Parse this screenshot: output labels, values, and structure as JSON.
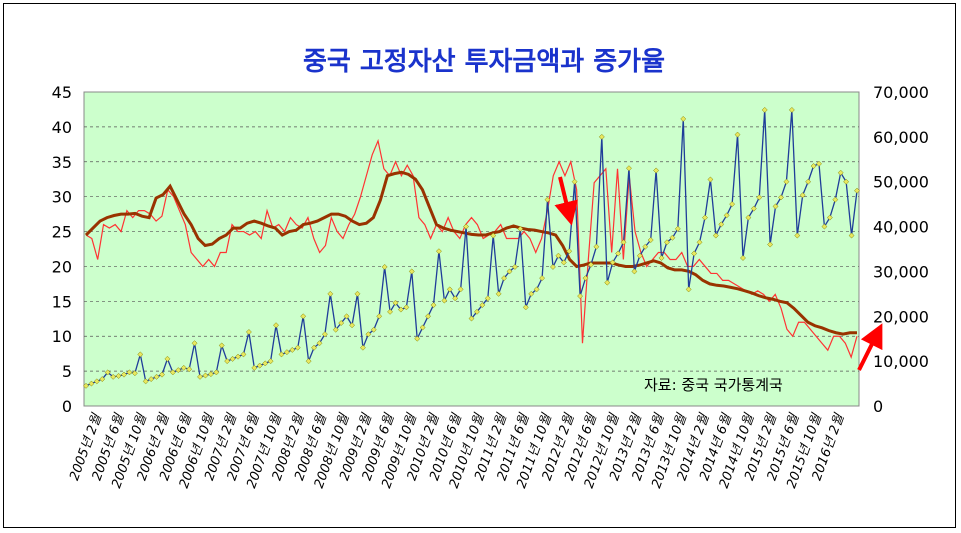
{
  "chart_data": {
    "type": "line",
    "title": "중국 고정자산 투자금액과 증가율",
    "source_note": "자료: 중국 국가통계국",
    "y_left_ticks": [
      "0",
      "5",
      "10",
      "15",
      "20",
      "25",
      "30",
      "35",
      "40",
      "45"
    ],
    "y_right_ticks": [
      "0",
      "10,000",
      "20,000",
      "30,000",
      "40,000",
      "50,000",
      "60,000",
      "70,000"
    ],
    "ylim_left": [
      0,
      45
    ],
    "ylim_right": [
      0,
      70000
    ],
    "x_tick_labels": [
      "2005년 2월",
      "2005년 6월",
      "2005년 10월",
      "2006년 2월",
      "2006년 6월",
      "2006년 10월",
      "2007년 2월",
      "2007년 6월",
      "2007년 10월",
      "2008년 2월",
      "2008년 6월",
      "2008년 10월",
      "2009년 2월",
      "2009년 6월",
      "2009년 10월",
      "2010년 2월",
      "2010년 6월",
      "2010년 10월",
      "2011년 2월",
      "2011년 6월",
      "2011년 10월",
      "2012년 2월",
      "2012년 6월",
      "2012년 10월",
      "2013년 2월",
      "2013년 6월",
      "2013년 10월",
      "2014년 2월",
      "2014년 6월",
      "2014년 10월",
      "2015년 2월",
      "2015년 6월",
      "2015년 10월",
      "2016년 2월"
    ],
    "colors": {
      "plot_bg": "#ccffcc",
      "growth_rate": "#ff3333",
      "growth_trend": "#993300",
      "amount_line": "#1f3d99",
      "amount_marker": "#e8e860",
      "title": "#1a33cc",
      "arrow": "#ff0000"
    },
    "series": [
      {
        "axis": "left",
        "style": "thin-red",
        "values": [
          24.5,
          24,
          21,
          26,
          25.5,
          26,
          25,
          28,
          27,
          28,
          28,
          27.5,
          26.5,
          27.2,
          31,
          30,
          28,
          26,
          22,
          21,
          20,
          21,
          20,
          22,
          22,
          26,
          25,
          25,
          24.5,
          25,
          24,
          28,
          25.5,
          26,
          25,
          27,
          26,
          25.5,
          27,
          24,
          22,
          23,
          27,
          25,
          24,
          26,
          27.5,
          30,
          33,
          36,
          38,
          34,
          33,
          35,
          33,
          34.5,
          33,
          27,
          26,
          24,
          26,
          25,
          27,
          25,
          24,
          26,
          27,
          26,
          24,
          24.5,
          25,
          26,
          24,
          24,
          24,
          25,
          24,
          22,
          24,
          28,
          33,
          35,
          33,
          35,
          31,
          9,
          21,
          32,
          33,
          34,
          22,
          34,
          21,
          33,
          25,
          22,
          20,
          21,
          22,
          22,
          21,
          21,
          22,
          20,
          20,
          21,
          20,
          19,
          19,
          18,
          18,
          17.5,
          17,
          16.5,
          16,
          16.5,
          16,
          15,
          16,
          14,
          11,
          10,
          12,
          12,
          11,
          10,
          9,
          8,
          10,
          10,
          9,
          7,
          10
        ],
        "x_start": 0.0,
        "x_step": 0.0096
      },
      {
        "axis": "left",
        "style": "thick-trend",
        "values": [
          24.5,
          25.5,
          26.5,
          27,
          27.3,
          27.5,
          27.5,
          27.6,
          27.2,
          27,
          29.8,
          30.3,
          31.5,
          29.5,
          27.5,
          26,
          24,
          23,
          23.2,
          24,
          24.5,
          25.5,
          25.5,
          26.2,
          26.5,
          26.2,
          25.8,
          25.5,
          24.5,
          25,
          25.2,
          26,
          26.2,
          26.5,
          27,
          27.5,
          27.5,
          27.2,
          26.5,
          26,
          26.2,
          27,
          29.5,
          33,
          33.3,
          33.5,
          33.2,
          32.5,
          31,
          28.5,
          26,
          25.5,
          25.2,
          25,
          24.8,
          24.6,
          24.5,
          24.5,
          24.8,
          25,
          25.5,
          25.8,
          25.5,
          25.3,
          25.2,
          25,
          24.8,
          24.5,
          23,
          21,
          20,
          20.2,
          20.5,
          20.5,
          20.5,
          20.5,
          20.2,
          20,
          20,
          20.2,
          20.5,
          20.8,
          20.5,
          19.8,
          19.5,
          19.5,
          19.3,
          18.8,
          18,
          17.5,
          17.3,
          17.2,
          17,
          16.8,
          16.5,
          16.2,
          15.8,
          15.5,
          15.3,
          15,
          14.8,
          14,
          13,
          12,
          11.5,
          11.2,
          10.8,
          10.5,
          10.3,
          10.5,
          10.5
        ],
        "x_start": 0.0,
        "x_step": 0.0092
      },
      {
        "axis": "right",
        "style": "blue-markers",
        "values": [
          4500,
          5000,
          5500,
          6000,
          7500,
          6500,
          6700,
          7000,
          7500,
          7300,
          11500,
          5500,
          6000,
          6500,
          7000,
          10500,
          7500,
          8000,
          8500,
          8200,
          14000,
          6500,
          6800,
          7100,
          7500,
          13500,
          10000,
          10500,
          11000,
          11500,
          16500,
          8500,
          9000,
          9500,
          10000,
          18000,
          11500,
          12000,
          12500,
          13000,
          20000,
          10000,
          13000,
          14000,
          16000,
          25000,
          17000,
          18500,
          20000,
          18000,
          25000,
          13000,
          16000,
          17000,
          20000,
          31000,
          21000,
          23000,
          21500,
          22000,
          30000,
          15000,
          17500,
          20000,
          22500,
          34500,
          23500,
          26000,
          24000,
          26000,
          40000,
          19500,
          21000,
          22500,
          24000,
          38000,
          25000,
          28500,
          30000,
          31000,
          39500,
          22000,
          25000,
          26000,
          28500,
          46000,
          31000,
          33500,
          32000,
          34500,
          50000,
          24500,
          28500,
          31500,
          35500,
          60000,
          27500,
          32000,
          34000,
          36500,
          53000,
          30000,
          33500,
          35500,
          37000,
          52500,
          33000,
          36500,
          37500,
          39500,
          64000,
          26000,
          34000,
          36500,
          42000,
          50500,
          38000,
          40500,
          42500,
          45000,
          60500,
          33000,
          42000,
          44000,
          46500,
          66000,
          36000,
          44500,
          46500,
          50000,
          66000,
          38000,
          47000,
          50000,
          53500,
          54000,
          40000,
          42000,
          46000,
          52000,
          50000,
          38000,
          48000
        ],
        "x_start": 0.0,
        "x_step": 0.0069
      }
    ]
  }
}
